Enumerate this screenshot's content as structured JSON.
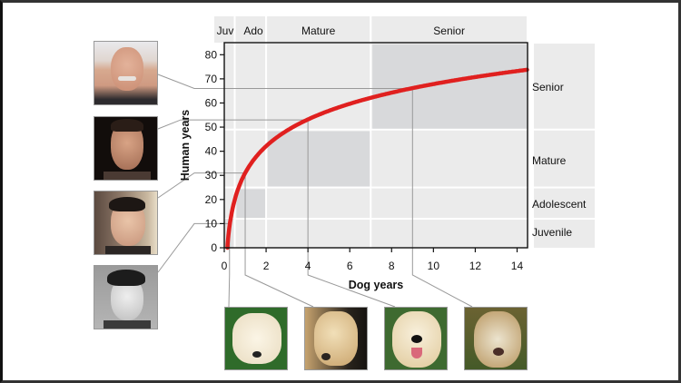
{
  "chart_data": {
    "type": "line",
    "title": "",
    "xlabel": "Dog years",
    "ylabel": "Human years",
    "xlim": [
      0,
      14.5
    ],
    "ylim": [
      0,
      85
    ],
    "x_ticks": [
      0,
      2,
      4,
      6,
      8,
      10,
      12,
      14
    ],
    "y_ticks": [
      0,
      10,
      20,
      30,
      40,
      50,
      60,
      70,
      80
    ],
    "series": [
      {
        "name": "Dog-to-human age curve",
        "color": "#e0201f",
        "x": [
          0.05,
          0.25,
          0.5,
          1,
          2,
          3,
          4,
          5,
          6,
          7,
          8,
          9,
          10,
          11,
          12,
          13,
          14.5
        ],
        "y": [
          0.5,
          10,
          18,
          31,
          42,
          48.5,
          53,
          56.6,
          59.5,
          62,
          64.3,
          66,
          67.8,
          69.3,
          70.6,
          71.8,
          73.5
        ]
      }
    ],
    "dog_stage_bands": [
      {
        "label": "Juv",
        "x_range": [
          0,
          0.5
        ]
      },
      {
        "label": "Ado",
        "x_range": [
          0.5,
          2
        ]
      },
      {
        "label": "Mature",
        "x_range": [
          2,
          7
        ]
      },
      {
        "label": "Senior",
        "x_range": [
          7,
          14.5
        ]
      }
    ],
    "human_stage_bands": [
      {
        "label": "Juvenile",
        "y_range": [
          0,
          12
        ]
      },
      {
        "label": "Adolescent",
        "y_range": [
          12,
          25
        ]
      },
      {
        "label": "Mature",
        "y_range": [
          25,
          49
        ]
      },
      {
        "label": "Senior",
        "y_range": [
          49,
          85
        ]
      }
    ],
    "highlight_regions": [
      {
        "stage": "Juvenile",
        "x_range": [
          0,
          0.5
        ],
        "y_range": [
          0,
          12
        ]
      },
      {
        "stage": "Adolescent",
        "x_range": [
          0.5,
          2
        ],
        "y_range": [
          12,
          25
        ]
      },
      {
        "stage": "Mature",
        "x_range": [
          2,
          7
        ],
        "y_range": [
          25,
          49
        ]
      },
      {
        "stage": "Senior",
        "x_range": [
          7,
          14.5
        ],
        "y_range": [
          49,
          85
        ]
      }
    ],
    "annotations": [
      {
        "dog_years": 0.25,
        "human_years": 10
      },
      {
        "dog_years": 1,
        "human_years": 31
      },
      {
        "dog_years": 4,
        "human_years": 53
      },
      {
        "dog_years": 9,
        "human_years": 66
      }
    ],
    "grid": false,
    "legend": "none"
  },
  "top_labels": [
    "Juv",
    "Ado",
    "Mature",
    "Senior"
  ],
  "right_labels": [
    "Senior",
    "Mature",
    "Adolescent",
    "Juvenile"
  ],
  "axis": {
    "xlabel": "Dog years",
    "ylabel": "Human years",
    "x_tick_labels": [
      "0",
      "2",
      "4",
      "6",
      "8",
      "10",
      "12",
      "14"
    ],
    "y_tick_labels": [
      "0",
      "10",
      "20",
      "30",
      "40",
      "50",
      "60",
      "70",
      "80"
    ]
  },
  "human_photos": [
    {
      "desc": "older man, smiling, gray hair",
      "stage": "Senior"
    },
    {
      "desc": "middle-aged man, dark background",
      "stage": "Mature"
    },
    {
      "desc": "young man, bookshelf background",
      "stage": "Adolescent"
    },
    {
      "desc": "boy, black and white portrait",
      "stage": "Juvenile"
    }
  ],
  "dog_photos": [
    {
      "desc": "yellow lab puppy on grass",
      "stage": "Juvenile"
    },
    {
      "desc": "young yellow lab, dark background",
      "stage": "Adolescent"
    },
    {
      "desc": "adult yellow lab on grass",
      "stage": "Mature"
    },
    {
      "desc": "old yellow lab, graying face",
      "stage": "Senior"
    }
  ],
  "colors": {
    "curve": "#e0201f",
    "band_light": "#ebebeb",
    "band_highlight": "#d8d9db",
    "connector": "#999999",
    "axis": "#111111"
  }
}
